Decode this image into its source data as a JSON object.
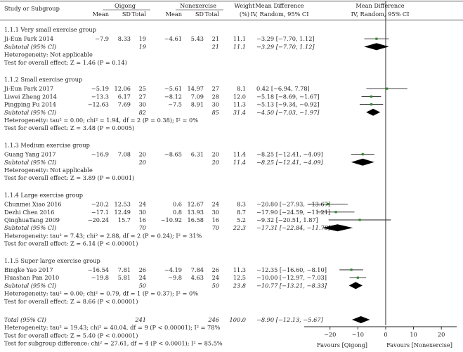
{
  "header": {
    "study_col": "Study or Subgroup",
    "qigong": "Qigong",
    "nonexercise": "Nonexercise",
    "weight": "Weight",
    "weight_unit": "(%)",
    "md_left": "Mean Difference",
    "md_left_sub": "IV, Random, 95% CI",
    "md_right": "Mean Difference",
    "md_right_sub": "IV, Random, 95% CI",
    "mean": "Mean",
    "sd": "SD",
    "total": "Total"
  },
  "chart_data": {
    "type": "forest",
    "x_axis": {
      "ticks": [
        -20,
        -10,
        0,
        10,
        20
      ],
      "range": [
        -27,
        25
      ]
    },
    "favours_left": "Favours [Qigong]",
    "favours_right": "Favours [Nonexercise]",
    "groups": [
      {
        "title": "1.1.1 Very small exercise group",
        "studies": [
          {
            "name": "Ji-Eun Park 2014",
            "q_mean": "−7.9",
            "q_sd": "8.33",
            "q_total": "19",
            "n_mean": "−4.61",
            "n_sd": "5.43",
            "n_total": "21",
            "weight": "11.1",
            "ci_text": "−3.29 [−7.70, 1.12]",
            "md": -3.29,
            "lo": -7.7,
            "hi": 1.12
          }
        ],
        "subtotal": {
          "label": "Subtotal (95% CI)",
          "q_total": "19",
          "n_total": "21",
          "weight": "11.1",
          "ci_text": "−3.29 [−7.70, 1.12]",
          "md": -3.29,
          "lo": -7.7,
          "hi": 1.12
        },
        "heterogeneity": "Heterogeneity: Not applicable",
        "overall": "Test for overall effect: Z = 1.46 (P = 0.14)"
      },
      {
        "title": "1.1.2 Small exercise group",
        "studies": [
          {
            "name": "Ji-Eun Park 2017",
            "q_mean": "−5.19",
            "q_sd": "12.06",
            "q_total": "25",
            "n_mean": "−5.61",
            "n_sd": "14.97",
            "n_total": "27",
            "weight": "8.1",
            "ci_text": "0.42 [−6.94, 7.78]",
            "md": 0.42,
            "lo": -6.94,
            "hi": 7.78
          },
          {
            "name": "Liwei Zheng 2014",
            "q_mean": "−13.3",
            "q_sd": "6.17",
            "q_total": "27",
            "n_mean": "−8.12",
            "n_sd": "7.09",
            "n_total": "28",
            "weight": "12.0",
            "ci_text": "−5.18 [−8.69, −1.67]",
            "md": -5.18,
            "lo": -8.69,
            "hi": -1.67
          },
          {
            "name": "Pingping Fu 2014",
            "q_mean": "−12.63",
            "q_sd": "7.69",
            "q_total": "30",
            "n_mean": "−7.5",
            "n_sd": "8.91",
            "n_total": "30",
            "weight": "11.3",
            "ci_text": "−5.13 [−9.34, −0.92]",
            "md": -5.13,
            "lo": -9.34,
            "hi": -0.92
          }
        ],
        "subtotal": {
          "label": "Subtotal (95% CI)",
          "q_total": "82",
          "n_total": "85",
          "weight": "31.4",
          "ci_text": "−4.50 [−7.03, −1.97]",
          "md": -4.5,
          "lo": -7.03,
          "hi": -1.97
        },
        "heterogeneity": "Heterogeneity: tau² = 0.00; chi² = 1.94, df = 2 (P = 0.38); I² = 0%",
        "overall": "Test for overall effect: Z = 3.48 (P = 0.0005)"
      },
      {
        "title": "1.1.3 Medium exercise group",
        "studies": [
          {
            "name": "Guang Yang 2017",
            "q_mean": "−16.9",
            "q_sd": "7.08",
            "q_total": "20",
            "n_mean": "−8.65",
            "n_sd": "6.31",
            "n_total": "20",
            "weight": "11.4",
            "ci_text": "−8.25 [−12.41, −4.09]",
            "md": -8.25,
            "lo": -12.41,
            "hi": -4.09
          }
        ],
        "subtotal": {
          "label": "Subtotal (95% CI)",
          "q_total": "20",
          "n_total": "20",
          "weight": "11.4",
          "ci_text": "−8.25 [−12.41, −4.09]",
          "md": -8.25,
          "lo": -12.41,
          "hi": -4.09
        },
        "heterogeneity": "Heterogeneity: Not applicable",
        "overall": "Test for overall effect: Z = 3.89 (P = 0.0001)"
      },
      {
        "title": "1.1.4 Large exercise group",
        "studies": [
          {
            "name": "Chunmei Xiao 2016",
            "q_mean": "−20.2",
            "q_sd": "12.53",
            "q_total": "24",
            "n_mean": "0.6",
            "n_sd": "12.67",
            "n_total": "24",
            "weight": "8.3",
            "ci_text": "−20.80 [−27.93, −13.67]",
            "md": -20.8,
            "lo": -27.93,
            "hi": -13.67
          },
          {
            "name": "Dezhi Chen 2016",
            "q_mean": "−17.1",
            "q_sd": "12.49",
            "q_total": "30",
            "n_mean": "0.8",
            "n_sd": "13.93",
            "n_total": "30",
            "weight": "8.7",
            "ci_text": "−17.90 [−24.59, −11.21]",
            "md": -17.9,
            "lo": -24.59,
            "hi": -11.21
          },
          {
            "name": "QinghuaTang 2009",
            "q_mean": "−20.24",
            "q_sd": "15.7",
            "q_total": "16",
            "n_mean": "−10.92",
            "n_sd": "16.58",
            "n_total": "16",
            "weight": "5.2",
            "ci_text": "−9.32 [−20.51, 1.87]",
            "md": -9.32,
            "lo": -20.51,
            "hi": 1.87
          }
        ],
        "subtotal": {
          "label": "Subtotal (95% CI)",
          "q_total": "70",
          "n_total": "70",
          "weight": "22.3",
          "ci_text": "−17.31 [−22.84, −11.78]",
          "md": -17.31,
          "lo": -22.84,
          "hi": -11.78
        },
        "heterogeneity": "Heterogeneity: tau² = 7.43; chi² = 2.88, df = 2 (P = 0.24); I² = 31%",
        "overall": "Test for overall effect: Z = 6.14 (P < 0.00001)"
      },
      {
        "title": "1.1.5 Super large exercise group",
        "studies": [
          {
            "name": "Bingke Yao 2017",
            "q_mean": "−16.54",
            "q_sd": "7.81",
            "q_total": "26",
            "n_mean": "−4.19",
            "n_sd": "7.84",
            "n_total": "26",
            "weight": "11.3",
            "ci_text": "−12.35 [−16.60, −8.10]",
            "md": -12.35,
            "lo": -16.6,
            "hi": -8.1
          },
          {
            "name": "Huashan Pan 2010",
            "q_mean": "−19.8",
            "q_sd": "5.81",
            "q_total": "24",
            "n_mean": "−9.8",
            "n_sd": "4.63",
            "n_total": "24",
            "weight": "12.5",
            "ci_text": "−10.00 [−12.97, −7.03]",
            "md": -10.0,
            "lo": -12.97,
            "hi": -7.03
          }
        ],
        "subtotal": {
          "label": "Subtotal (95% CI)",
          "q_total": "50",
          "n_total": "50",
          "weight": "23.8",
          "ci_text": "−10.77 [−13.21, −8.33]",
          "md": -10.77,
          "lo": -13.21,
          "hi": -8.33
        },
        "heterogeneity": "Heterogeneity: tau² = 0.00; chi² = 0.79, df = 1 (P = 0.37); I² = 0%",
        "overall": "Test for overall effect: Z = 8.66 (P < 0.00001)"
      }
    ],
    "total": {
      "label": "Total (95% CI)",
      "q_total": "241",
      "n_total": "246",
      "weight": "100.0",
      "ci_text": "−8.90 [−12.13, −5.67]",
      "md": -8.9,
      "lo": -12.13,
      "hi": -5.67
    },
    "footer": [
      "Heterogeneity: tau² = 19.43; chi² = 40.04, df = 9 (P < 0.00001); I² = 78%",
      "Test for overall effect: Z = 5.40 (P < 0.00001)",
      "Test for subgroup difference: chi² = 27.61, df = 4 (P < 0.0001); I² = 85.5%"
    ],
    "colors": {
      "study_marker": "#2e8b2e",
      "diamond": "#000000",
      "line": "#000000"
    }
  }
}
